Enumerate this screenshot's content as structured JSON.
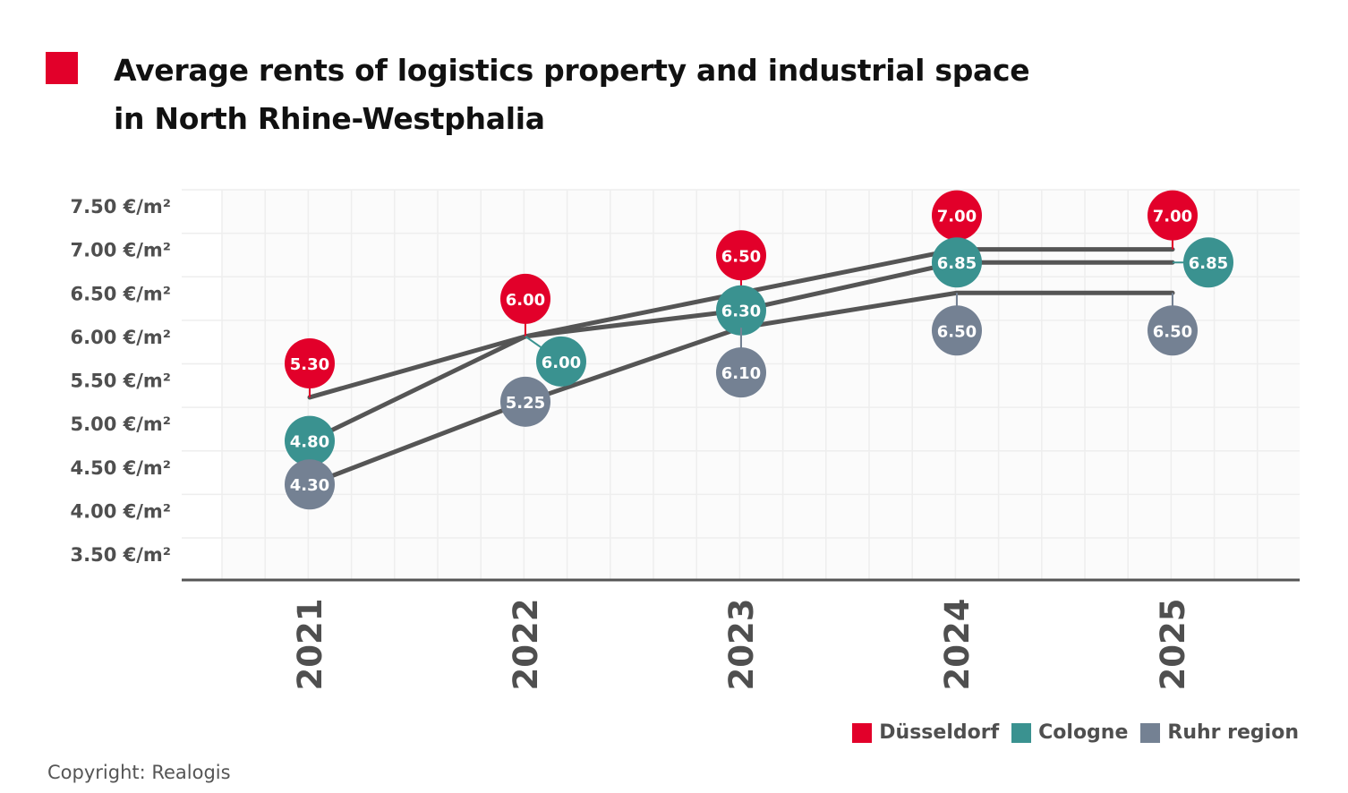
{
  "header": {
    "title_line1": "Average rents of logistics property and industrial space",
    "title_line2": "in North Rhine-Westphalia",
    "accent_color": "#e2002a"
  },
  "chart_data": {
    "type": "line",
    "title": "Average rents of logistics property and industrial space in North Rhine-Westphalia",
    "xlabel": "",
    "ylabel": "",
    "categories": [
      "2021",
      "2022",
      "2023",
      "2024",
      "2025"
    ],
    "ylim": [
      3.5,
      7.5
    ],
    "yticks": [
      {
        "value": 7.5,
        "label": "7.50 €/m²"
      },
      {
        "value": 7.0,
        "label": "7.00 €/m²"
      },
      {
        "value": 6.5,
        "label": "6.50 €/m²"
      },
      {
        "value": 6.0,
        "label": "6.00 €/m²"
      },
      {
        "value": 5.5,
        "label": "5.50 €/m²"
      },
      {
        "value": 5.0,
        "label": "5.00 €/m²"
      },
      {
        "value": 4.5,
        "label": "4.50 €/m²"
      },
      {
        "value": 4.0,
        "label": "4.00 €/m²"
      },
      {
        "value": 3.5,
        "label": "3.50 €/m²"
      }
    ],
    "grid": true,
    "line_color": "#555555",
    "legend_position": "bottom-right",
    "series": [
      {
        "name": "Düsseldorf",
        "color": "#e2002a",
        "values": [
          5.3,
          6.0,
          6.5,
          7.0,
          7.0
        ],
        "labels": [
          "5.30",
          "6.00",
          "6.50",
          "7.00",
          "7.00"
        ]
      },
      {
        "name": "Cologne",
        "color": "#3a9290",
        "values": [
          4.8,
          6.0,
          6.3,
          6.85,
          6.85
        ],
        "labels": [
          "4.80",
          "6.00",
          "6.30",
          "6.85",
          "6.85"
        ]
      },
      {
        "name": "Ruhr region",
        "color": "#748193",
        "values": [
          4.3,
          5.25,
          6.1,
          6.5,
          6.5
        ],
        "labels": [
          "4.30",
          "5.25",
          "6.10",
          "6.50",
          "6.50"
        ]
      }
    ]
  },
  "legend": {
    "items": [
      {
        "label": "Düsseldorf",
        "color": "#e2002a"
      },
      {
        "label": "Cologne",
        "color": "#3a9290"
      },
      {
        "label": "Ruhr region",
        "color": "#748193"
      }
    ]
  },
  "footer": {
    "copyright": "Copyright: Realogis"
  }
}
